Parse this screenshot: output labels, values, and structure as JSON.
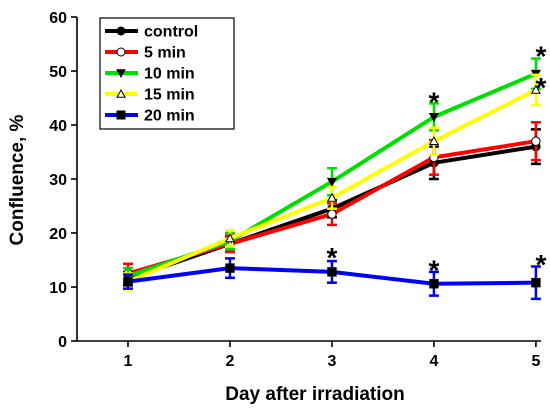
{
  "chart_data": {
    "type": "line",
    "title": "",
    "xlabel": "Day after irradiation",
    "ylabel": "Confluence, %",
    "x": [
      1,
      2,
      3,
      4,
      5
    ],
    "xticks": [
      "1",
      "2",
      "3",
      "4",
      "5"
    ],
    "xlim": [
      0.5,
      5.05
    ],
    "ylim": [
      0,
      60
    ],
    "yticks": [
      "0",
      "10",
      "20",
      "30",
      "40",
      "50",
      "60"
    ],
    "grid": false,
    "legend_position": "top-left",
    "series": [
      {
        "name": "control",
        "color": "#000000",
        "marker": "filled-circle",
        "values": [
          11.5,
          18.0,
          24.5,
          33.0,
          36.0
        ],
        "errors": [
          1.2,
          1.5,
          1.6,
          3.0,
          3.2
        ]
      },
      {
        "name": "5 min",
        "color": "#ff0000",
        "marker": "open-circle",
        "values": [
          12.5,
          18.0,
          23.5,
          34.0,
          37.0
        ],
        "errors": [
          1.8,
          1.5,
          2.0,
          3.2,
          3.5
        ]
      },
      {
        "name": "10 min",
        "color": "#00e000",
        "marker": "filled-triangle-down",
        "values": [
          12.0,
          18.5,
          29.5,
          41.5,
          49.5
        ],
        "errors": [
          1.5,
          1.5,
          2.5,
          2.5,
          2.8
        ]
      },
      {
        "name": "15 min",
        "color": "#ffff00",
        "marker": "open-triangle-up",
        "values": [
          11.0,
          19.0,
          26.5,
          37.0,
          46.5
        ],
        "errors": [
          1.5,
          1.5,
          2.0,
          2.5,
          2.8
        ]
      },
      {
        "name": "20 min",
        "color": "#0000ff",
        "marker": "filled-square",
        "values": [
          11.0,
          13.5,
          12.8,
          10.6,
          10.8
        ],
        "errors": [
          1.3,
          1.8,
          2.0,
          2.2,
          3.0
        ]
      }
    ],
    "annotations": [
      {
        "text": "*",
        "x": 3,
        "y": 15.9
      },
      {
        "text": "*",
        "x": 4,
        "y": 44.7
      },
      {
        "text": "*",
        "x": 4,
        "y": 13.6
      },
      {
        "text": "*",
        "x": 5,
        "y": 53.2
      },
      {
        "text": "*",
        "x": 5,
        "y": 47.4
      },
      {
        "text": "*",
        "x": 5,
        "y": 14.6
      }
    ]
  }
}
